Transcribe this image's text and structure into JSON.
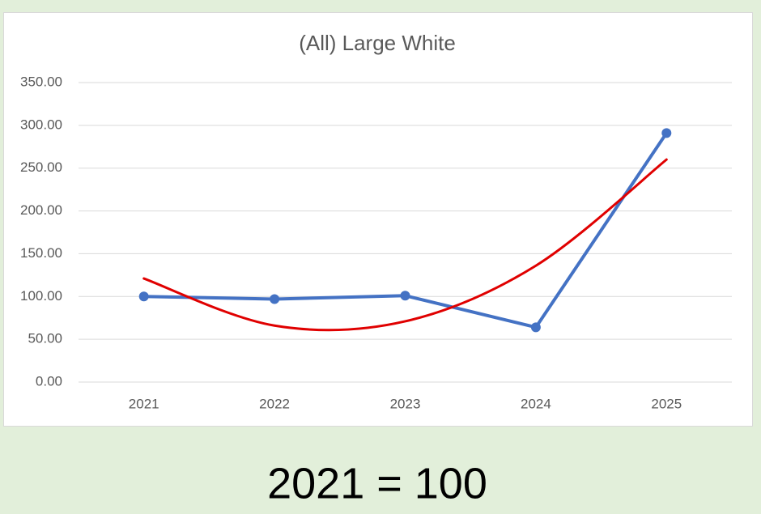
{
  "chart_data": {
    "type": "line",
    "title": "(All) Large White",
    "caption": "2021 = 100",
    "categories": [
      "2021",
      "2022",
      "2023",
      "2024",
      "2025"
    ],
    "series": [
      {
        "color": "#4472c4",
        "markers": true,
        "smooth": false,
        "values": [
          100,
          97,
          101,
          64,
          291
        ]
      },
      {
        "color": "#e00000",
        "markers": false,
        "smooth": true,
        "values": [
          121,
          66,
          71,
          136,
          260
        ]
      }
    ],
    "ylim": [
      0,
      350
    ],
    "yticks": [
      {
        "value": 0,
        "label": "0.00"
      },
      {
        "value": 50,
        "label": "50.00"
      },
      {
        "value": 100,
        "label": "100.00"
      },
      {
        "value": 150,
        "label": "150.00"
      },
      {
        "value": 200,
        "label": "200.00"
      },
      {
        "value": 250,
        "label": "250.00"
      },
      {
        "value": 300,
        "label": "300.00"
      },
      {
        "value": 350,
        "label": "350.00"
      }
    ],
    "grid": true
  }
}
